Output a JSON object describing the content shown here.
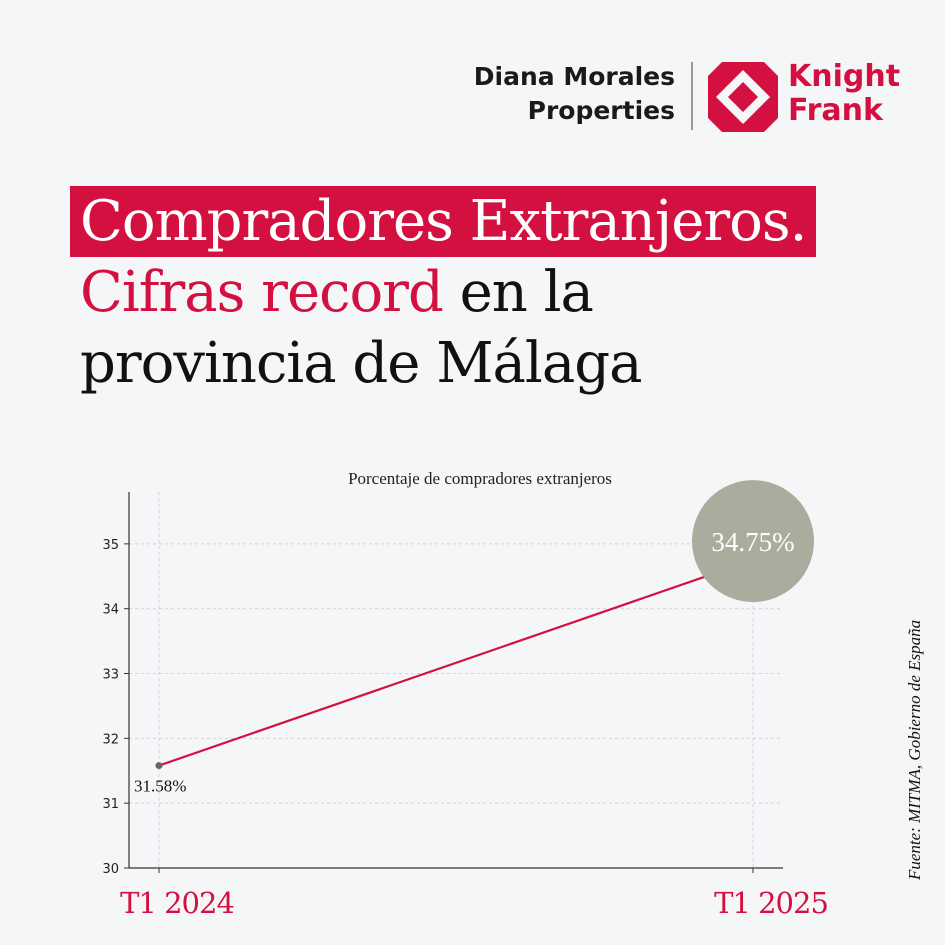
{
  "header": {
    "brand_line1": "Diana Morales",
    "brand_line2": "Properties",
    "kf_line1": "Knight",
    "kf_line2": "Frank",
    "kf_logo_icon": "knight-frank-checker-logo"
  },
  "headline": {
    "line1": "Compradores Extranjeros.",
    "accent": "Cifras record",
    "rest": " en la",
    "line3": "provincia de Málaga"
  },
  "colors": {
    "brand_red": "#d3103f",
    "bubble_gray": "#a8ad9e",
    "background": "#f5f6f8"
  },
  "chart_data": {
    "type": "line",
    "title": "Porcentaje de compradores extranjeros",
    "categories": [
      "T1 2024",
      "T1 2025"
    ],
    "values": [
      31.58,
      34.75
    ],
    "data_labels": [
      "31.58%",
      "34.75%"
    ],
    "y_ticks": [
      30,
      31,
      32,
      33,
      34,
      35
    ],
    "ylim": [
      30,
      35.8
    ],
    "grid": true,
    "line_color": "#d3103f"
  },
  "source": "Fuente:  MITMA, Gobierno de España"
}
